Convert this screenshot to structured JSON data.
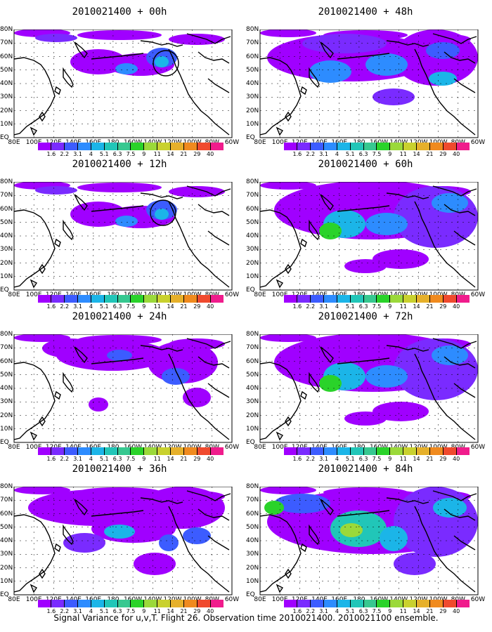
{
  "panels": [
    {
      "title": "2010021400 + 00h",
      "level": 0,
      "circle": true
    },
    {
      "title": "2010021400 + 48h",
      "level": 3
    },
    {
      "title": "2010021400 + 12h",
      "level": 0,
      "circle": true
    },
    {
      "title": "2010021400 + 60h",
      "level": 4
    },
    {
      "title": "2010021400 + 24h",
      "level": 1
    },
    {
      "title": "2010021400 + 72h",
      "level": 4
    },
    {
      "title": "2010021400 + 36h",
      "level": 2
    },
    {
      "title": "2010021400 + 84h",
      "level": 5
    }
  ],
  "lat_labels": [
    "80N",
    "70N",
    "60N",
    "50N",
    "40N",
    "30N",
    "20N",
    "10N",
    "EQ"
  ],
  "lon_labels": [
    "80E",
    "100E",
    "120E",
    "140E",
    "160E",
    "180",
    "160W",
    "140W",
    "120W",
    "100W",
    "80W",
    "60W"
  ],
  "colorbar": {
    "labels": [
      "1.6",
      "2.2",
      "3.1",
      "4",
      "5.1",
      "6.3",
      "7.5",
      "9",
      "11",
      "14",
      "21",
      "29",
      "40"
    ],
    "colors": [
      "#a000ff",
      "#7a2bff",
      "#3c5cff",
      "#2d8cff",
      "#1bb5e8",
      "#21c6b8",
      "#37c890",
      "#2ad32a",
      "#9bd93a",
      "#c9d12e",
      "#e6b02a",
      "#f08a1e",
      "#f04a2e",
      "#f01c8c"
    ]
  },
  "caption": "Signal Variance for u,v,T. Flight 26. Observation time 2010021400. 2010021100 ensemble."
}
